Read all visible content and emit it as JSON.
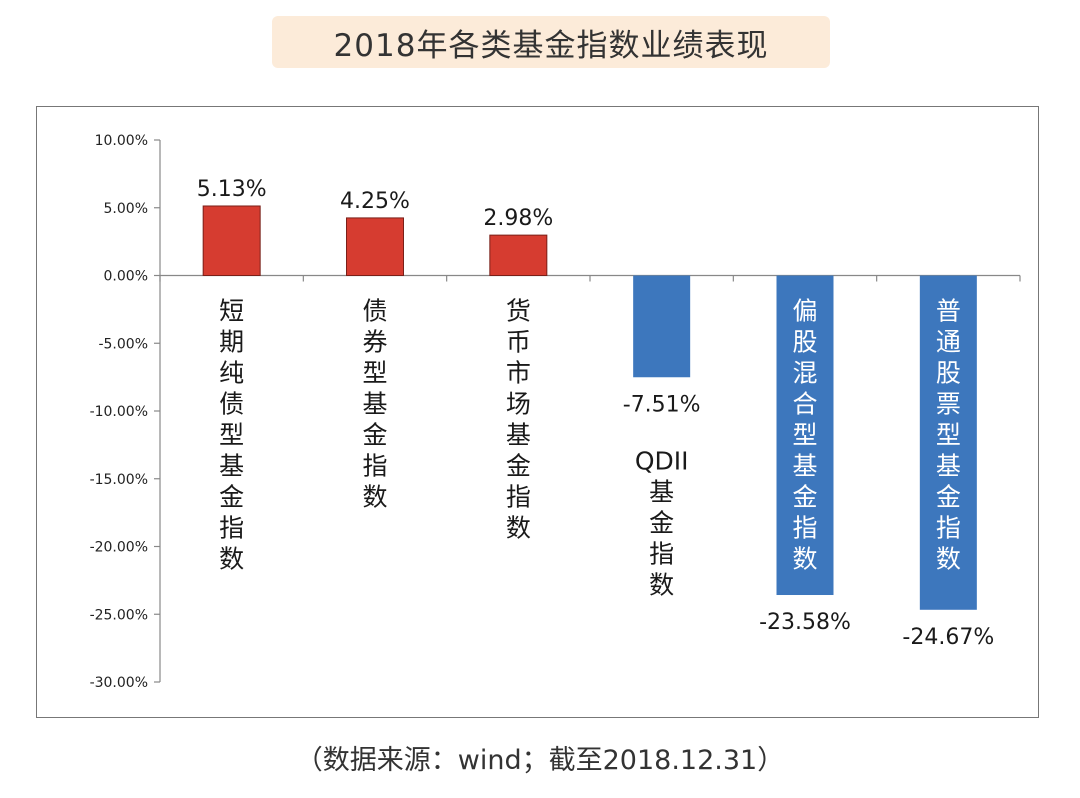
{
  "title": "2018年各类基金指数业绩表现",
  "source": "（数据来源：wind；截至2018.12.31）",
  "colors": {
    "positive": "#d63c30",
    "negative": "#3d77bd",
    "axis": "#888888",
    "title_bg": "#fcebd9"
  },
  "chart_data": {
    "type": "bar",
    "title": "2018年各类基金指数业绩表现",
    "xlabel": "",
    "ylabel": "",
    "categories": [
      "短期纯债型基金指数",
      "债券型基金指数",
      "货币市场基金指数",
      "QDII基金指数",
      "偏股混合型基金指数",
      "普通股票型基金指数"
    ],
    "category_lines": [
      [
        "短",
        "期",
        "纯",
        "债",
        "型",
        "基",
        "金",
        "指",
        "数"
      ],
      [
        "债",
        "券",
        "型",
        "基",
        "金",
        "指",
        "数"
      ],
      [
        "货",
        "币",
        "市",
        "场",
        "基",
        "金",
        "指",
        "数"
      ],
      [
        "QDII",
        "基",
        "金",
        "指",
        "数"
      ],
      [
        "偏",
        "股",
        "混",
        "合",
        "型",
        "基",
        "金",
        "指",
        "数"
      ],
      [
        "普",
        "通",
        "股",
        "票",
        "型",
        "基",
        "金",
        "指",
        "数"
      ]
    ],
    "values": [
      5.13,
      4.25,
      2.98,
      -7.51,
      -23.58,
      -24.67
    ],
    "value_labels": [
      "5.13%",
      "4.25%",
      "2.98%",
      "-7.51%",
      "-23.58%",
      "-24.67%"
    ],
    "ylim": [
      -30,
      10
    ],
    "yticks": [
      10,
      5,
      0,
      -5,
      -10,
      -15,
      -20,
      -25,
      -30
    ],
    "ytick_labels": [
      "10.00%",
      "5.00%",
      "0.00%",
      "-5.00%",
      "-10.00%",
      "-15.00%",
      "-20.00%",
      "-25.00%",
      "-30.00%"
    ],
    "grid": false,
    "legend": "none"
  }
}
